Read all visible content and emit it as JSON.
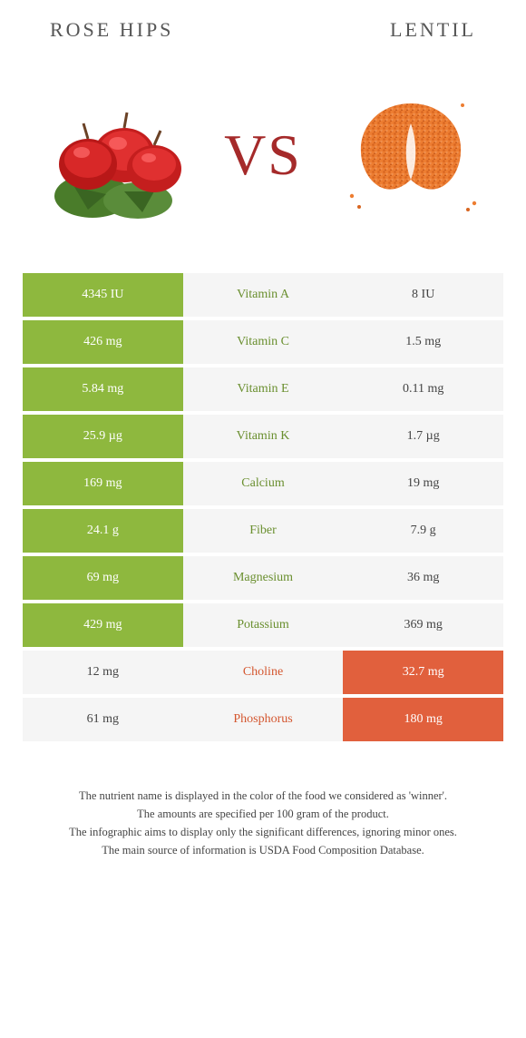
{
  "titles": {
    "left": "Rose Hips",
    "right": "Lentil"
  },
  "vs_label": "VS",
  "colors": {
    "left_win": "#8eb83e",
    "right_win": "#e1603d",
    "mid_bg": "#f5f5f5",
    "green_text": "#6a8f2f",
    "orange_text": "#d4562f"
  },
  "rows": [
    {
      "left": "4345 IU",
      "mid": "Vitamin A",
      "right": "8 IU",
      "winner": "left"
    },
    {
      "left": "426 mg",
      "mid": "Vitamin C",
      "right": "1.5 mg",
      "winner": "left"
    },
    {
      "left": "5.84 mg",
      "mid": "Vitamin E",
      "right": "0.11 mg",
      "winner": "left"
    },
    {
      "left": "25.9 µg",
      "mid": "Vitamin K",
      "right": "1.7 µg",
      "winner": "left"
    },
    {
      "left": "169 mg",
      "mid": "Calcium",
      "right": "19 mg",
      "winner": "left"
    },
    {
      "left": "24.1 g",
      "mid": "Fiber",
      "right": "7.9 g",
      "winner": "left"
    },
    {
      "left": "69 mg",
      "mid": "Magnesium",
      "right": "36 mg",
      "winner": "left"
    },
    {
      "left": "429 mg",
      "mid": "Potassium",
      "right": "369 mg",
      "winner": "left"
    },
    {
      "left": "12 mg",
      "mid": "Choline",
      "right": "32.7 mg",
      "winner": "right"
    },
    {
      "left": "61 mg",
      "mid": "Phosphorus",
      "right": "180 mg",
      "winner": "right"
    }
  ],
  "footer": [
    "The nutrient name is displayed in the color of the food we considered as 'winner'.",
    "The amounts are specified per 100 gram of the product.",
    "The infographic aims to display only the significant differences, ignoring minor ones.",
    "The main source of information is USDA Food Composition Database."
  ]
}
